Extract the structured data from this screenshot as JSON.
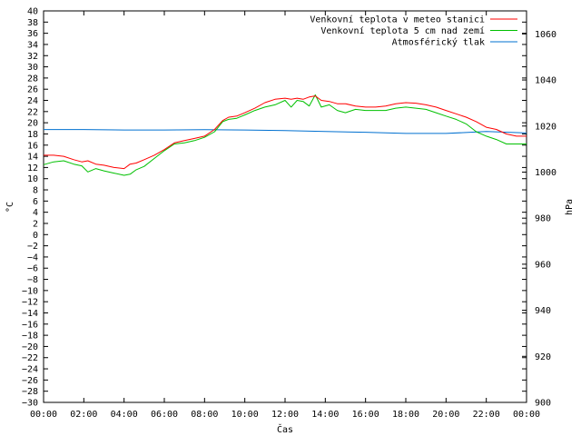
{
  "chart_data": {
    "type": "line",
    "title": "",
    "xlabel": "Čas",
    "ylabel": "°C",
    "y2label": "hPa",
    "x_ticks": [
      "00:00",
      "02:00",
      "04:00",
      "06:00",
      "08:00",
      "10:00",
      "12:00",
      "14:00",
      "16:00",
      "18:00",
      "20:00",
      "22:00",
      "00:00"
    ],
    "xlim_hours": [
      0,
      24
    ],
    "ylim": [
      -30,
      40
    ],
    "y_ticks": [
      -30,
      -28,
      -26,
      -24,
      -22,
      -20,
      -18,
      -16,
      -14,
      -12,
      -10,
      -8,
      -6,
      -4,
      -2,
      0,
      2,
      4,
      6,
      8,
      10,
      12,
      14,
      16,
      18,
      20,
      22,
      24,
      26,
      28,
      30,
      32,
      34,
      36,
      38,
      40
    ],
    "y2lim": [
      900,
      1070
    ],
    "y2_ticks": [
      900,
      920,
      940,
      960,
      980,
      1000,
      1020,
      1040,
      1060
    ],
    "grid": false,
    "legend_position": "top-right",
    "series": [
      {
        "name": "Venkovní teplota v meteo stanici",
        "axis": "left",
        "color": "#ff0000",
        "x": [
          0,
          0.5,
          1,
          1.5,
          1.9,
          2.2,
          2.6,
          3,
          3.5,
          4,
          4.3,
          4.6,
          5,
          5.5,
          6,
          6.5,
          7,
          7.5,
          8,
          8.5,
          8.9,
          9.2,
          9.6,
          10,
          10.5,
          11,
          11.5,
          12,
          12.3,
          12.6,
          12.9,
          13.2,
          13.5,
          13.8,
          14.2,
          14.6,
          15,
          15.5,
          16,
          16.5,
          17,
          17.5,
          18,
          18.5,
          19,
          19.5,
          20,
          20.5,
          21,
          21.5,
          22,
          22.5,
          23,
          23.5,
          24
        ],
        "y": [
          14.2,
          14.2,
          14,
          13.4,
          13,
          13.2,
          12.6,
          12.4,
          12,
          11.8,
          12.6,
          12.8,
          13.4,
          14.2,
          15.2,
          16.4,
          16.8,
          17.2,
          17.6,
          18.8,
          20.4,
          21,
          21.2,
          21.8,
          22.6,
          23.6,
          24.2,
          24.4,
          24.2,
          24.4,
          24.2,
          24.6,
          24.8,
          24,
          23.8,
          23.4,
          23.4,
          23,
          22.8,
          22.8,
          23,
          23.4,
          23.6,
          23.5,
          23.2,
          22.8,
          22.2,
          21.6,
          21,
          20.2,
          19.2,
          18.8,
          18,
          17.6,
          17.6
        ]
      },
      {
        "name": "Venkovní teplota 5 cm nad zemí",
        "axis": "left",
        "color": "#00c000",
        "x": [
          0,
          0.5,
          1,
          1.5,
          1.9,
          2.2,
          2.6,
          3,
          3.5,
          4,
          4.3,
          4.6,
          5,
          5.5,
          6,
          6.5,
          7,
          7.5,
          8,
          8.5,
          8.9,
          9.2,
          9.6,
          10,
          10.5,
          11,
          11.5,
          12,
          12.3,
          12.6,
          12.9,
          13.2,
          13.5,
          13.8,
          14.2,
          14.6,
          15,
          15.5,
          16,
          16.5,
          17,
          17.5,
          18,
          18.5,
          19,
          19.5,
          20,
          20.5,
          21,
          21.5,
          22,
          22.5,
          23,
          23.5,
          24
        ],
        "y": [
          12.5,
          13,
          13.2,
          12.6,
          12.3,
          11.2,
          11.8,
          11.4,
          11,
          10.6,
          10.8,
          11.6,
          12.2,
          13.6,
          15,
          16.2,
          16.4,
          16.8,
          17.4,
          18.4,
          20.2,
          20.6,
          20.8,
          21.4,
          22.2,
          22.8,
          23.2,
          24,
          22.8,
          24,
          23.8,
          23,
          25,
          22.8,
          23.2,
          22.2,
          21.8,
          22.4,
          22.2,
          22.2,
          22.2,
          22.6,
          22.8,
          22.6,
          22.4,
          21.8,
          21.2,
          20.6,
          19.8,
          18.4,
          17.6,
          17,
          16.2,
          16.2,
          16.2
        ]
      },
      {
        "name": "Atmosférický tlak",
        "axis": "right",
        "color": "#0070d0",
        "x": [
          0,
          2,
          4,
          6,
          8,
          10,
          12,
          14,
          16,
          18,
          20,
          22,
          24
        ],
        "y": [
          1018.5,
          1018.5,
          1018.3,
          1018.3,
          1018.4,
          1018.3,
          1018,
          1017.6,
          1017.3,
          1016.8,
          1016.8,
          1017.6,
          1017
        ]
      }
    ]
  }
}
